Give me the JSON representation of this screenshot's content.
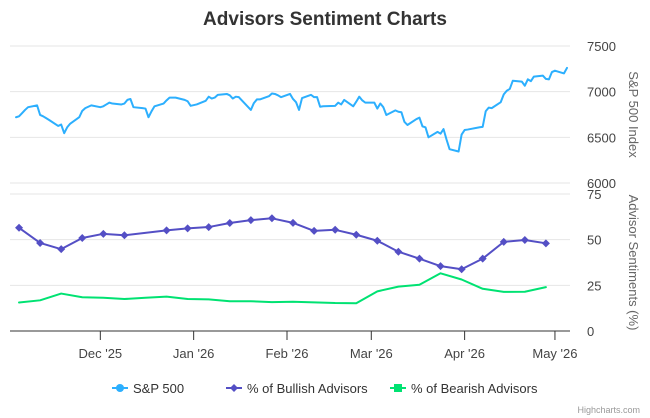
{
  "chart_data": {
    "type": "line",
    "title": "Advisors Sentiment Charts",
    "credits": "Highcharts.com",
    "x_tick_labels": [
      {
        "date": "2025-12-01",
        "label": "Dec '25"
      },
      {
        "date": "2026-01-01",
        "label": "Jan '26"
      },
      {
        "date": "2026-02-01",
        "label": "Feb '26"
      },
      {
        "date": "2026-03-01",
        "label": "Mar '26"
      },
      {
        "date": "2026-04-01",
        "label": "Apr '26"
      },
      {
        "date": "2026-05-01",
        "label": "May '26"
      }
    ],
    "x_range": [
      "2025-11-01",
      "2026-05-06"
    ],
    "panels": [
      {
        "name": "sp500-panel",
        "axis_title": "S&P 500 Index",
        "ylim": [
          6000,
          7500
        ],
        "ticks": [
          6000,
          6500,
          7000,
          7500
        ],
        "grid": true
      },
      {
        "name": "sentiment-panel",
        "axis_title": "Advisor Sentiments (%)",
        "ylim": [
          0,
          75
        ],
        "ticks": [
          0,
          25,
          50,
          75
        ],
        "grid": true
      }
    ],
    "series": [
      {
        "name": "S&P 500",
        "panel": 0,
        "color": "#2caffe",
        "marker": "circle",
        "show_markers": false,
        "points": [
          [
            "2025-11-03",
            6720
          ],
          [
            "2025-11-04",
            6730
          ],
          [
            "2025-11-05",
            6765
          ],
          [
            "2025-11-06",
            6800
          ],
          [
            "2025-11-07",
            6830
          ],
          [
            "2025-11-10",
            6850
          ],
          [
            "2025-11-11",
            6745
          ],
          [
            "2025-11-12",
            6730
          ],
          [
            "2025-11-13",
            6710
          ],
          [
            "2025-11-14",
            6690
          ],
          [
            "2025-11-17",
            6625
          ],
          [
            "2025-11-18",
            6640
          ],
          [
            "2025-11-19",
            6545
          ],
          [
            "2025-11-20",
            6610
          ],
          [
            "2025-11-21",
            6650
          ],
          [
            "2025-11-24",
            6720
          ],
          [
            "2025-11-25",
            6790
          ],
          [
            "2025-11-26",
            6820
          ],
          [
            "2025-11-28",
            6850
          ],
          [
            "2025-12-01",
            6830
          ],
          [
            "2025-12-02",
            6840
          ],
          [
            "2025-12-03",
            6860
          ],
          [
            "2025-12-04",
            6880
          ],
          [
            "2025-12-05",
            6870
          ],
          [
            "2025-12-08",
            6860
          ],
          [
            "2025-12-09",
            6870
          ],
          [
            "2025-12-10",
            6910
          ],
          [
            "2025-12-11",
            6920
          ],
          [
            "2025-12-12",
            6830
          ],
          [
            "2025-12-15",
            6820
          ],
          [
            "2025-12-16",
            6815
          ],
          [
            "2025-12-17",
            6720
          ],
          [
            "2025-12-18",
            6785
          ],
          [
            "2025-12-19",
            6840
          ],
          [
            "2025-12-22",
            6870
          ],
          [
            "2025-12-23",
            6905
          ],
          [
            "2025-12-24",
            6935
          ],
          [
            "2025-12-26",
            6935
          ],
          [
            "2025-12-29",
            6910
          ],
          [
            "2025-12-30",
            6895
          ],
          [
            "2025-12-31",
            6845
          ],
          [
            "2026-01-02",
            6860
          ],
          [
            "2026-01-05",
            6900
          ],
          [
            "2026-01-06",
            6945
          ],
          [
            "2026-01-07",
            6925
          ],
          [
            "2026-01-08",
            6935
          ],
          [
            "2026-01-09",
            6965
          ],
          [
            "2026-01-12",
            6975
          ],
          [
            "2026-01-13",
            6960
          ],
          [
            "2026-01-14",
            6925
          ],
          [
            "2026-01-15",
            6945
          ],
          [
            "2026-01-16",
            6940
          ],
          [
            "2026-01-20",
            6800
          ],
          [
            "2026-01-21",
            6875
          ],
          [
            "2026-01-22",
            6915
          ],
          [
            "2026-01-23",
            6915
          ],
          [
            "2026-01-26",
            6950
          ],
          [
            "2026-01-27",
            6980
          ],
          [
            "2026-01-28",
            6975
          ],
          [
            "2026-01-29",
            6960
          ],
          [
            "2026-01-30",
            6940
          ],
          [
            "2026-02-02",
            6975
          ],
          [
            "2026-02-03",
            6920
          ],
          [
            "2026-02-04",
            6885
          ],
          [
            "2026-02-05",
            6800
          ],
          [
            "2026-02-06",
            6930
          ],
          [
            "2026-02-09",
            6965
          ],
          [
            "2026-02-10",
            6940
          ],
          [
            "2026-02-11",
            6940
          ],
          [
            "2026-02-12",
            6835
          ],
          [
            "2026-02-13",
            6840
          ],
          [
            "2026-02-17",
            6845
          ],
          [
            "2026-02-18",
            6880
          ],
          [
            "2026-02-19",
            6860
          ],
          [
            "2026-02-20",
            6910
          ],
          [
            "2026-02-23",
            6840
          ],
          [
            "2026-02-24",
            6890
          ],
          [
            "2026-02-25",
            6945
          ],
          [
            "2026-02-26",
            6905
          ],
          [
            "2026-02-27",
            6880
          ],
          [
            "2026-03-02",
            6880
          ],
          [
            "2026-03-03",
            6815
          ],
          [
            "2026-03-04",
            6870
          ],
          [
            "2026-03-05",
            6830
          ],
          [
            "2026-03-06",
            6745
          ],
          [
            "2026-03-09",
            6795
          ],
          [
            "2026-03-10",
            6780
          ],
          [
            "2026-03-11",
            6775
          ],
          [
            "2026-03-12",
            6670
          ],
          [
            "2026-03-13",
            6635
          ],
          [
            "2026-03-16",
            6700
          ],
          [
            "2026-03-17",
            6715
          ],
          [
            "2026-03-18",
            6620
          ],
          [
            "2026-03-19",
            6610
          ],
          [
            "2026-03-20",
            6500
          ],
          [
            "2026-03-23",
            6560
          ],
          [
            "2026-03-24",
            6540
          ],
          [
            "2026-03-25",
            6590
          ],
          [
            "2026-03-26",
            6475
          ],
          [
            "2026-03-27",
            6370
          ],
          [
            "2026-03-30",
            6345
          ],
          [
            "2026-03-31",
            6530
          ],
          [
            "2026-04-01",
            6580
          ],
          [
            "2026-04-02",
            6585
          ],
          [
            "2026-04-06",
            6610
          ],
          [
            "2026-04-07",
            6615
          ],
          [
            "2026-04-08",
            6785
          ],
          [
            "2026-04-09",
            6825
          ],
          [
            "2026-04-10",
            6820
          ],
          [
            "2026-04-13",
            6885
          ],
          [
            "2026-04-14",
            6970
          ],
          [
            "2026-04-15",
            7010
          ],
          [
            "2026-04-16",
            7030
          ],
          [
            "2026-04-17",
            7120
          ],
          [
            "2026-04-20",
            7110
          ],
          [
            "2026-04-21",
            7065
          ],
          [
            "2026-04-22",
            7135
          ],
          [
            "2026-04-23",
            7115
          ],
          [
            "2026-04-24",
            7165
          ],
          [
            "2026-04-27",
            7175
          ],
          [
            "2026-04-28",
            7140
          ],
          [
            "2026-04-29",
            7135
          ],
          [
            "2026-04-30",
            7215
          ],
          [
            "2026-05-01",
            7230
          ],
          [
            "2026-05-04",
            7200
          ],
          [
            "2026-05-05",
            7260
          ]
        ]
      },
      {
        "name": "% of Bullish Advisors",
        "panel": 1,
        "color": "#544fc5",
        "marker": "diamond",
        "show_markers": true,
        "points": [
          [
            "2025-11-04",
            56.5
          ],
          [
            "2025-11-11",
            48.2
          ],
          [
            "2025-11-18",
            44.8
          ],
          [
            "2025-11-25",
            50.9
          ],
          [
            "2025-12-02",
            53.2
          ],
          [
            "2025-12-09",
            52.4
          ],
          [
            "2025-12-23",
            55.1
          ],
          [
            "2025-12-30",
            56.2
          ],
          [
            "2026-01-06",
            56.9
          ],
          [
            "2026-01-13",
            59.1
          ],
          [
            "2026-01-20",
            60.7
          ],
          [
            "2026-01-27",
            61.7
          ],
          [
            "2026-02-03",
            59.2
          ],
          [
            "2026-02-10",
            54.8
          ],
          [
            "2026-02-17",
            55.4
          ],
          [
            "2026-02-24",
            52.7
          ],
          [
            "2026-03-03",
            49.4
          ],
          [
            "2026-03-10",
            43.4
          ],
          [
            "2026-03-17",
            39.6
          ],
          [
            "2026-03-24",
            35.5
          ],
          [
            "2026-03-31",
            33.8
          ],
          [
            "2026-04-07",
            39.6
          ],
          [
            "2026-04-14",
            48.8
          ],
          [
            "2026-04-21",
            49.8
          ],
          [
            "2026-04-28",
            48.0
          ]
        ]
      },
      {
        "name": "% of Bearish Advisors",
        "panel": 1,
        "color": "#00e272",
        "marker": "square",
        "show_markers": false,
        "points": [
          [
            "2025-11-04",
            15.6
          ],
          [
            "2025-11-11",
            16.8
          ],
          [
            "2025-11-18",
            20.5
          ],
          [
            "2025-11-25",
            18.5
          ],
          [
            "2025-12-02",
            18.2
          ],
          [
            "2025-12-09",
            17.5
          ],
          [
            "2025-12-16",
            18.2
          ],
          [
            "2025-12-23",
            18.8
          ],
          [
            "2025-12-30",
            17.5
          ],
          [
            "2026-01-06",
            17.3
          ],
          [
            "2026-01-13",
            16.3
          ],
          [
            "2026-01-20",
            16.3
          ],
          [
            "2026-01-27",
            15.8
          ],
          [
            "2026-02-03",
            16.0
          ],
          [
            "2026-02-10",
            15.7
          ],
          [
            "2026-02-17",
            15.3
          ],
          [
            "2026-02-24",
            15.2
          ],
          [
            "2026-03-03",
            21.7
          ],
          [
            "2026-03-10",
            24.3
          ],
          [
            "2026-03-17",
            25.3
          ],
          [
            "2026-03-24",
            31.6
          ],
          [
            "2026-03-31",
            28.2
          ],
          [
            "2026-04-07",
            23.1
          ],
          [
            "2026-04-14",
            21.4
          ],
          [
            "2026-04-21",
            21.5
          ],
          [
            "2026-04-28",
            24.0
          ]
        ]
      }
    ],
    "legend": {
      "position": "bottom-center",
      "items": [
        "S&P 500",
        "% of Bullish Advisors",
        "% of Bearish Advisors"
      ]
    },
    "axis_style": {
      "grid_color": "#e6e6e6",
      "axis_color": "#333333"
    }
  }
}
